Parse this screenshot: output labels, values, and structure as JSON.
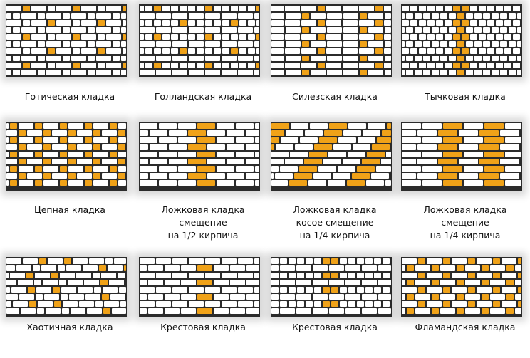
{
  "title": "",
  "colors": {
    "accent": "#f0a218",
    "brick": "#ffffff",
    "mortar": "#2b2b2b",
    "background": "#ffffff"
  },
  "patterns": [
    {
      "label": "Готическая кладка",
      "pattern": "gothic"
    },
    {
      "label": "Голландская кладка",
      "pattern": "dutch"
    },
    {
      "label": "Силезская кладка",
      "pattern": "silesian"
    },
    {
      "label": "Тычковая кладка",
      "pattern": "header"
    },
    {
      "label": "Цепная кладка",
      "pattern": "chain"
    },
    {
      "label": "Ложковая кладка\nсмещение\nна 1/2 кирпича",
      "pattern": "stretcher-half"
    },
    {
      "label": "Ложковая кладка\nкосое смещение\nна 1/4 кирпича",
      "pattern": "stretcher-raking"
    },
    {
      "label": "Ложковая кладка\nсмещение\nна 1/4 кирпича",
      "pattern": "stretcher-quarter"
    },
    {
      "label": "Хаотичная кладка",
      "pattern": "random"
    },
    {
      "label": "Крестовая кладка",
      "pattern": "cross-1"
    },
    {
      "label": "Крестовая кладка",
      "pattern": "cross-2"
    },
    {
      "label": "Фламандская кладка",
      "pattern": "flemish"
    }
  ]
}
